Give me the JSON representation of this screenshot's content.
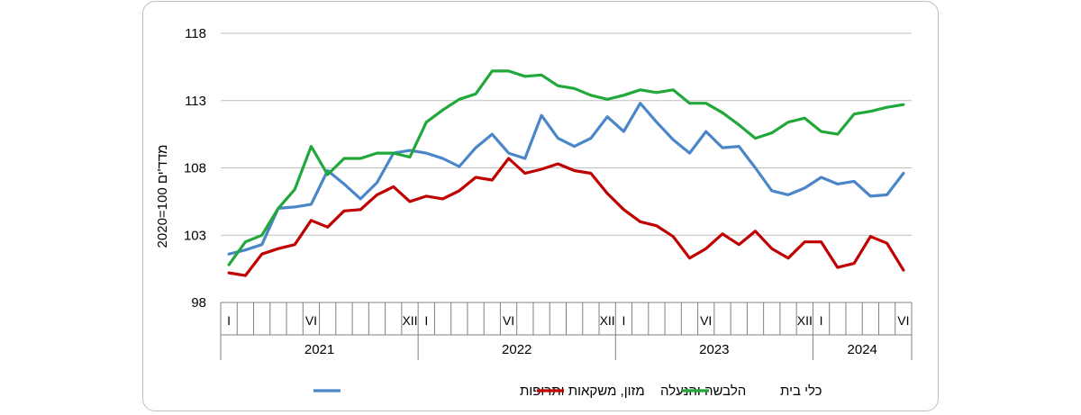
{
  "chart_data": {
    "type": "line",
    "ylabel": "2020=100 מדד'ים",
    "ylim": [
      98,
      118
    ],
    "yticks": [
      98,
      103,
      108,
      113,
      118
    ],
    "grid": true,
    "legend_position": "bottom",
    "years": [
      {
        "label": "2021",
        "start": 0,
        "end": 12
      },
      {
        "label": "2022",
        "start": 12,
        "end": 24
      },
      {
        "label": "2023",
        "start": 24,
        "end": 36
      },
      {
        "label": "2024",
        "start": 36,
        "end": 42
      }
    ],
    "month_labels": [
      {
        "index": 0,
        "text": "I"
      },
      {
        "index": 5,
        "text": "VI"
      },
      {
        "index": 11,
        "text": "XII"
      },
      {
        "index": 12,
        "text": "I"
      },
      {
        "index": 17,
        "text": "VI"
      },
      {
        "index": 23,
        "text": "XII"
      },
      {
        "index": 24,
        "text": "I"
      },
      {
        "index": 29,
        "text": "VI"
      },
      {
        "index": 35,
        "text": "XII"
      },
      {
        "index": 36,
        "text": "I"
      },
      {
        "index": 41,
        "text": "VI"
      }
    ],
    "series": [
      {
        "name": "מזון, משקאות ותרופות",
        "color": "#4a86c8",
        "values": [
          101.6,
          101.9,
          102.3,
          105.0,
          105.1,
          105.3,
          107.8,
          106.8,
          105.7,
          106.9,
          109.1,
          109.3,
          109.1,
          108.7,
          108.1,
          109.5,
          110.5,
          109.1,
          108.7,
          111.9,
          110.2,
          109.6,
          110.2,
          111.8,
          110.7,
          112.8,
          111.4,
          110.1,
          109.1,
          110.7,
          109.5,
          109.6,
          108.0,
          106.3,
          106.0,
          106.5,
          107.3,
          106.8,
          107.0,
          105.9,
          106.0,
          107.6
        ]
      },
      {
        "name": "הלבשה והנעלה",
        "color": "#c00000",
        "values": [
          100.2,
          100.0,
          101.6,
          102.0,
          102.3,
          104.1,
          103.6,
          104.8,
          104.9,
          106.0,
          106.6,
          105.5,
          105.9,
          105.7,
          106.3,
          107.3,
          107.1,
          108.7,
          107.6,
          107.9,
          108.3,
          107.8,
          107.6,
          106.1,
          104.9,
          104.0,
          103.7,
          102.9,
          101.3,
          102.0,
          103.1,
          102.3,
          103.3,
          102.0,
          101.3,
          102.5,
          102.5,
          100.6,
          100.9,
          102.9,
          102.4,
          100.4
        ]
      },
      {
        "name": "כלי בית",
        "color": "#22a83a",
        "values": [
          100.8,
          102.5,
          103.0,
          105.0,
          106.4,
          109.6,
          107.5,
          108.7,
          108.7,
          109.1,
          109.1,
          108.8,
          111.4,
          112.3,
          113.1,
          113.5,
          115.2,
          115.2,
          114.8,
          114.9,
          114.1,
          113.9,
          113.4,
          113.1,
          113.4,
          113.8,
          113.6,
          113.8,
          112.8,
          112.8,
          112.1,
          111.2,
          110.2,
          110.6,
          111.4,
          111.7,
          110.7,
          110.5,
          112.0,
          112.2,
          112.5,
          112.7
        ]
      }
    ]
  }
}
